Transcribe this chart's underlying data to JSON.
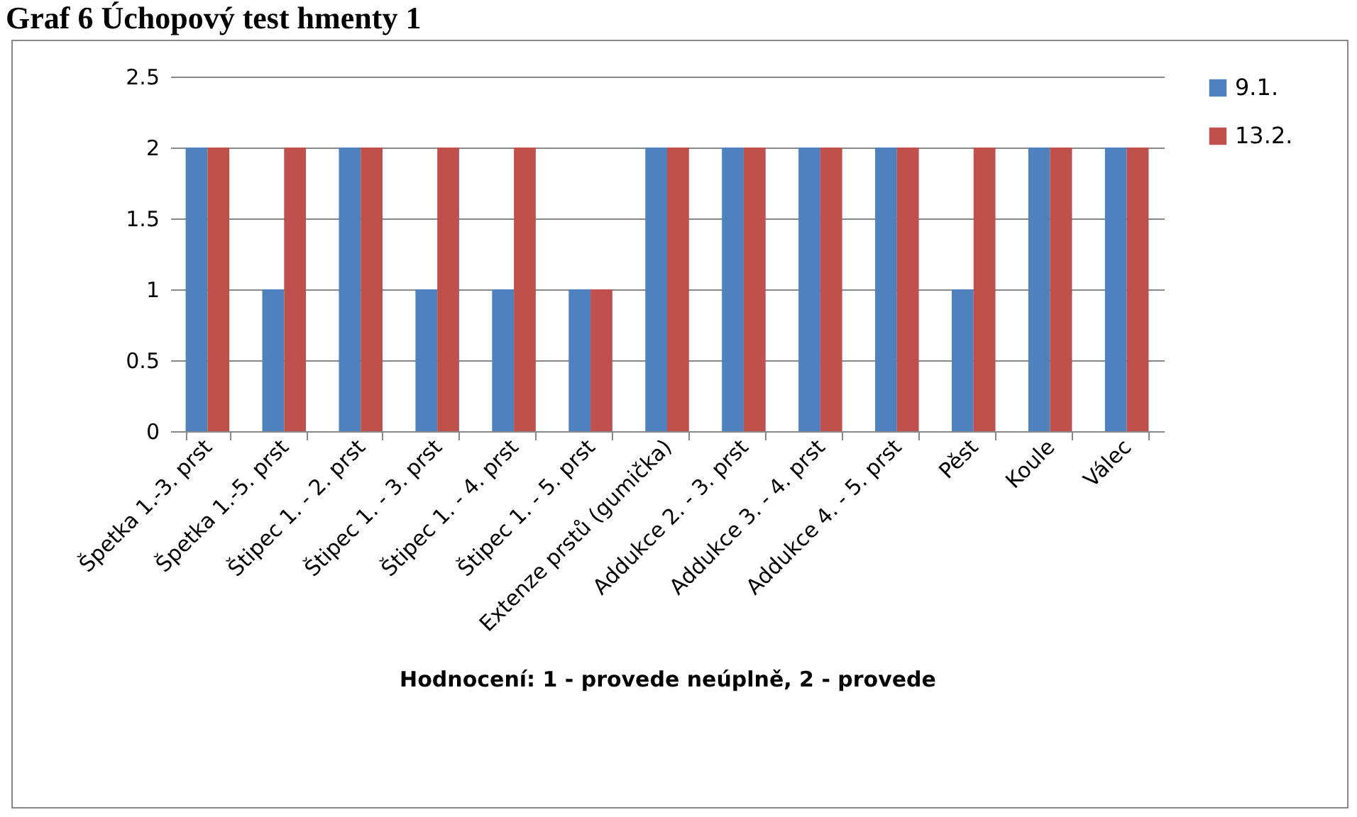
{
  "chart_data": {
    "type": "bar",
    "title": "Graf 6 Úchopový test hmenty 1",
    "xlabel": "Hodnocení:  1 - provede neúplně, 2 - provede",
    "categories": [
      "Špetka  1.-3. prst",
      "Špetka  1.-5. prst",
      "Štipec 1. - 2. prst",
      "Štipec 1. - 3. prst",
      "Štipec 1. - 4. prst",
      "Štipec 1. - 5. prst",
      "Extenze prstů (gumička)",
      "Addukce 2.  - 3. prst",
      "Addukce 3.  - 4. prst",
      "Addukce 4.  - 5. prst",
      "Pěst",
      "Koule",
      "Válec"
    ],
    "series": [
      {
        "name": "9.1.",
        "color": "#4f81bd",
        "values": [
          2,
          1,
          2,
          1,
          1,
          1,
          2,
          2,
          2,
          2,
          1,
          2,
          2
        ]
      },
      {
        "name": "13.2.",
        "color": "#c0504d",
        "values": [
          2,
          2,
          2,
          2,
          2,
          1,
          2,
          2,
          2,
          2,
          2,
          2,
          2
        ]
      }
    ],
    "ylim": [
      0,
      2.5
    ],
    "yticks": [
      0,
      0.5,
      1,
      1.5,
      2,
      2.5
    ],
    "grid": "y",
    "legend": "right"
  }
}
